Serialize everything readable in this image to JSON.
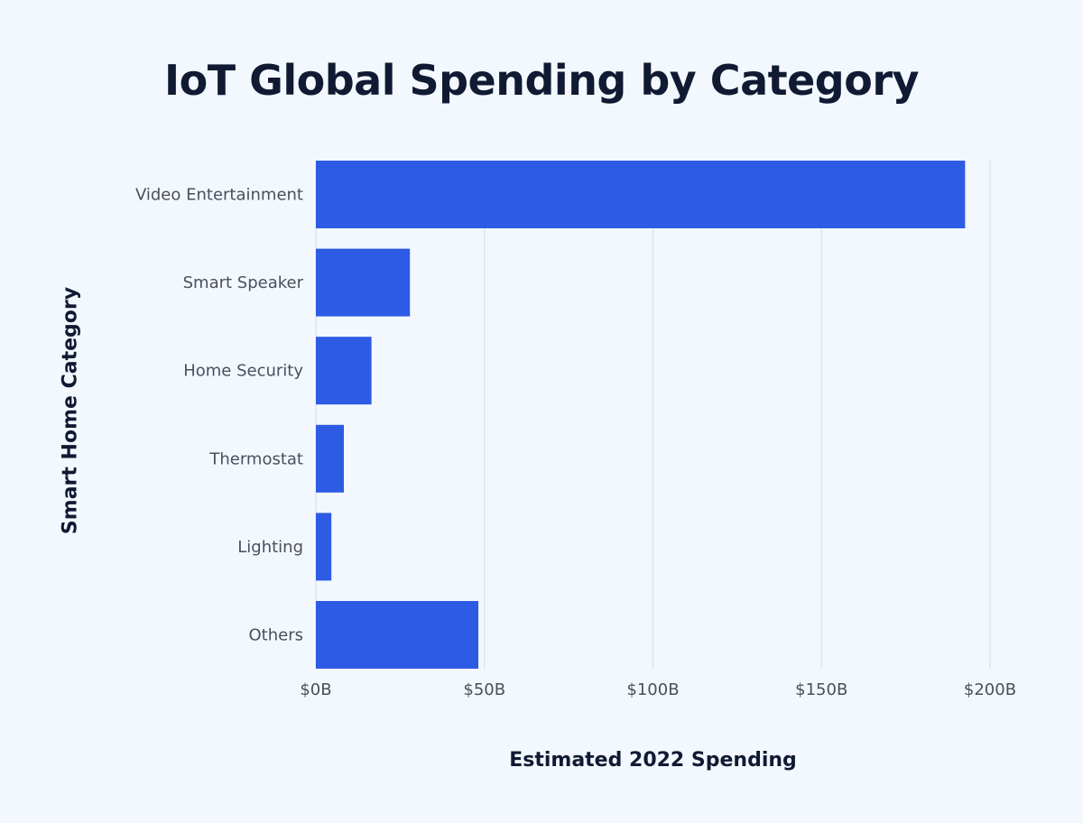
{
  "chart_data": {
    "type": "bar",
    "orientation": "horizontal",
    "title": "IoT Global Spending by Category",
    "xlabel": "Estimated 2022 Spending",
    "ylabel": "Smart Home Category",
    "categories": [
      "Video Entertainment",
      "Smart Speaker",
      "Home Security",
      "Thermostat",
      "Lighting",
      "Others"
    ],
    "values": [
      192.6,
      27.9,
      16.5,
      8.3,
      4.6,
      48.2
    ],
    "unit": "billion USD",
    "xlim": [
      0,
      200
    ],
    "xticks": [
      0,
      50,
      100,
      150,
      200
    ],
    "xtick_labels": [
      "$0B",
      "$50B",
      "$100B",
      "$150B",
      "$200B"
    ],
    "grid": "vertical",
    "bar_color": "#2d5be3",
    "grid_color": "#e2e6ec"
  }
}
